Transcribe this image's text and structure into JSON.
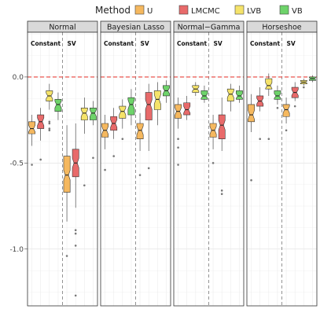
{
  "legend": {
    "title": "Method",
    "position": "top",
    "items": [
      {
        "label": "U",
        "color": "#F5B85F"
      },
      {
        "label": "LMCMC",
        "color": "#E86A6A"
      },
      {
        "label": "LVB",
        "color": "#F5E36A"
      },
      {
        "label": "VB",
        "color": "#6ED36A"
      }
    ]
  },
  "chart_data": {
    "type": "boxplot",
    "notched": true,
    "facet_layout": "1x4",
    "panels": [
      "Normal",
      "Bayesian Lasso",
      "Normal−Gamma",
      "Horseshoe"
    ],
    "groups": [
      "Constant",
      "SV"
    ],
    "methods": [
      "U",
      "LMCMC",
      "LVB",
      "VB"
    ],
    "ylim": [
      -1.33,
      0.26
    ],
    "yticks": [
      0.0,
      -0.5,
      -1.0
    ],
    "ytick_labels": [
      "0.0",
      "-0.5",
      "-1.0"
    ],
    "reference_line": {
      "y": 0.0,
      "style": "dashed",
      "color": "#E8403A"
    },
    "group_separator": {
      "style": "dashed",
      "color": "#888888"
    },
    "grid": true,
    "ylabel": "",
    "xlabel": "",
    "boxes": [
      {
        "panel": "Normal",
        "group": "Constant",
        "method": "U",
        "min": -0.4,
        "q1": -0.33,
        "median": -0.3,
        "q3": -0.26,
        "max": -0.22,
        "outliers": [
          -0.51
        ]
      },
      {
        "panel": "Normal",
        "group": "Constant",
        "method": "LMCMC",
        "min": -0.37,
        "q1": -0.3,
        "median": -0.26,
        "q3": -0.22,
        "max": -0.18,
        "outliers": [
          -0.48
        ]
      },
      {
        "panel": "Normal",
        "group": "Constant",
        "method": "LVB",
        "min": -0.19,
        "q1": -0.14,
        "median": -0.11,
        "q3": -0.08,
        "max": -0.04,
        "outliers": [
          -0.31,
          -0.3,
          -0.27,
          -0.26
        ]
      },
      {
        "panel": "Normal",
        "group": "Constant",
        "method": "VB",
        "min": -0.25,
        "q1": -0.2,
        "median": -0.16,
        "q3": -0.13,
        "max": -0.09,
        "outliers": []
      },
      {
        "panel": "Normal",
        "group": "SV",
        "method": "U",
        "min": -0.84,
        "q1": -0.67,
        "median": -0.57,
        "q3": -0.46,
        "max": -0.28,
        "outliers": [
          -1.04
        ]
      },
      {
        "panel": "Normal",
        "group": "SV",
        "method": "LMCMC",
        "min": -0.76,
        "q1": -0.58,
        "median": -0.5,
        "q3": -0.42,
        "max": -0.27,
        "outliers": [
          -0.89,
          -0.91,
          -0.98,
          -1.27
        ]
      },
      {
        "panel": "Normal",
        "group": "SV",
        "method": "LVB",
        "min": -0.33,
        "q1": -0.25,
        "median": -0.21,
        "q3": -0.18,
        "max": -0.12,
        "outliers": [
          -0.63
        ]
      },
      {
        "panel": "Normal",
        "group": "SV",
        "method": "VB",
        "min": -0.28,
        "q1": -0.25,
        "median": -0.21,
        "q3": -0.18,
        "max": -0.14,
        "outliers": [
          -0.47
        ]
      },
      {
        "panel": "Bayesian Lasso",
        "group": "Constant",
        "method": "U",
        "min": -0.42,
        "q1": -0.35,
        "median": -0.31,
        "q3": -0.27,
        "max": -0.22,
        "outliers": [
          -0.54
        ]
      },
      {
        "panel": "Bayesian Lasso",
        "group": "Constant",
        "method": "LMCMC",
        "min": -0.36,
        "q1": -0.31,
        "median": -0.27,
        "q3": -0.23,
        "max": -0.18,
        "outliers": [
          -0.46
        ]
      },
      {
        "panel": "Bayesian Lasso",
        "group": "Constant",
        "method": "LVB",
        "min": -0.3,
        "q1": -0.24,
        "median": -0.2,
        "q3": -0.17,
        "max": -0.13,
        "outliers": [
          -0.36
        ]
      },
      {
        "panel": "Bayesian Lasso",
        "group": "Constant",
        "method": "VB",
        "min": -0.28,
        "q1": -0.22,
        "median": -0.16,
        "q3": -0.12,
        "max": -0.07,
        "outliers": []
      },
      {
        "panel": "Bayesian Lasso",
        "group": "SV",
        "method": "U",
        "min": -0.43,
        "q1": -0.36,
        "median": -0.31,
        "q3": -0.27,
        "max": -0.21,
        "outliers": [
          -0.57
        ]
      },
      {
        "panel": "Bayesian Lasso",
        "group": "SV",
        "method": "LMCMC",
        "min": -0.43,
        "q1": -0.25,
        "median": -0.16,
        "q3": -0.09,
        "max": -0.04,
        "outliers": [
          -0.53
        ]
      },
      {
        "panel": "Bayesian Lasso",
        "group": "SV",
        "method": "LVB",
        "min": -0.28,
        "q1": -0.19,
        "median": -0.13,
        "q3": -0.08,
        "max": -0.03,
        "outliers": []
      },
      {
        "panel": "Bayesian Lasso",
        "group": "SV",
        "method": "VB",
        "min": -0.15,
        "q1": -0.11,
        "median": -0.08,
        "q3": -0.05,
        "max": -0.02,
        "outliers": []
      },
      {
        "panel": "Normal−Gamma",
        "group": "Constant",
        "method": "U",
        "min": -0.3,
        "q1": -0.24,
        "median": -0.2,
        "q3": -0.16,
        "max": -0.12,
        "outliers": [
          -0.36,
          -0.41,
          -0.51
        ]
      },
      {
        "panel": "Normal−Gamma",
        "group": "Constant",
        "method": "LMCMC",
        "min": -0.25,
        "q1": -0.22,
        "median": -0.19,
        "q3": -0.15,
        "max": -0.11,
        "outliers": []
      },
      {
        "panel": "Normal−Gamma",
        "group": "Constant",
        "method": "LVB",
        "min": -0.11,
        "q1": -0.09,
        "median": -0.07,
        "q3": -0.05,
        "max": -0.03,
        "outliers": []
      },
      {
        "panel": "Normal−Gamma",
        "group": "Constant",
        "method": "VB",
        "min": -0.15,
        "q1": -0.13,
        "median": -0.11,
        "q3": -0.08,
        "max": -0.05,
        "outliers": []
      },
      {
        "panel": "Normal−Gamma",
        "group": "SV",
        "method": "U",
        "min": -0.42,
        "q1": -0.35,
        "median": -0.31,
        "q3": -0.27,
        "max": -0.22,
        "outliers": [
          -0.5
        ]
      },
      {
        "panel": "Normal−Gamma",
        "group": "SV",
        "method": "LMCMC",
        "min": -0.43,
        "q1": -0.36,
        "median": -0.28,
        "q3": -0.22,
        "max": -0.12,
        "outliers": [
          -0.66,
          -0.68
        ]
      },
      {
        "panel": "Normal−Gamma",
        "group": "SV",
        "method": "LVB",
        "min": -0.2,
        "q1": -0.14,
        "median": -0.1,
        "q3": -0.07,
        "max": -0.04,
        "outliers": []
      },
      {
        "panel": "Normal−Gamma",
        "group": "SV",
        "method": "VB",
        "min": -0.15,
        "q1": -0.13,
        "median": -0.11,
        "q3": -0.08,
        "max": -0.05,
        "outliers": []
      },
      {
        "panel": "Horseshoe",
        "group": "Constant",
        "method": "U",
        "min": -0.32,
        "q1": -0.26,
        "median": -0.22,
        "q3": -0.16,
        "max": -0.1,
        "outliers": [
          -0.6
        ]
      },
      {
        "panel": "Horseshoe",
        "group": "Constant",
        "method": "LMCMC",
        "min": -0.2,
        "q1": -0.17,
        "median": -0.14,
        "q3": -0.11,
        "max": -0.06,
        "outliers": [
          -0.36
        ]
      },
      {
        "panel": "Horseshoe",
        "group": "Constant",
        "method": "LVB",
        "min": -0.11,
        "q1": -0.07,
        "median": -0.05,
        "q3": -0.01,
        "max": 0.02,
        "outliers": [
          -0.36
        ]
      },
      {
        "panel": "Horseshoe",
        "group": "Constant",
        "method": "VB",
        "min": -0.16,
        "q1": -0.13,
        "median": -0.11,
        "q3": -0.08,
        "max": -0.05,
        "outliers": [
          -0.18
        ]
      },
      {
        "panel": "Horseshoe",
        "group": "SV",
        "method": "U",
        "min": -0.27,
        "q1": -0.23,
        "median": -0.19,
        "q3": -0.16,
        "max": -0.12,
        "outliers": [
          -0.31
        ]
      },
      {
        "panel": "Horseshoe",
        "group": "SV",
        "method": "LMCMC",
        "min": -0.14,
        "q1": -0.12,
        "median": -0.09,
        "q3": -0.06,
        "max": -0.03,
        "outliers": [
          -0.17
        ]
      },
      {
        "panel": "Horseshoe",
        "group": "SV",
        "method": "LVB",
        "min": -0.05,
        "q1": -0.04,
        "median": -0.03,
        "q3": -0.02,
        "max": -0.01,
        "outliers": [
          -0.06
        ]
      },
      {
        "panel": "Horseshoe",
        "group": "SV",
        "method": "VB",
        "min": -0.03,
        "q1": -0.02,
        "median": -0.01,
        "q3": 0.0,
        "max": 0.01,
        "outliers": []
      }
    ]
  }
}
